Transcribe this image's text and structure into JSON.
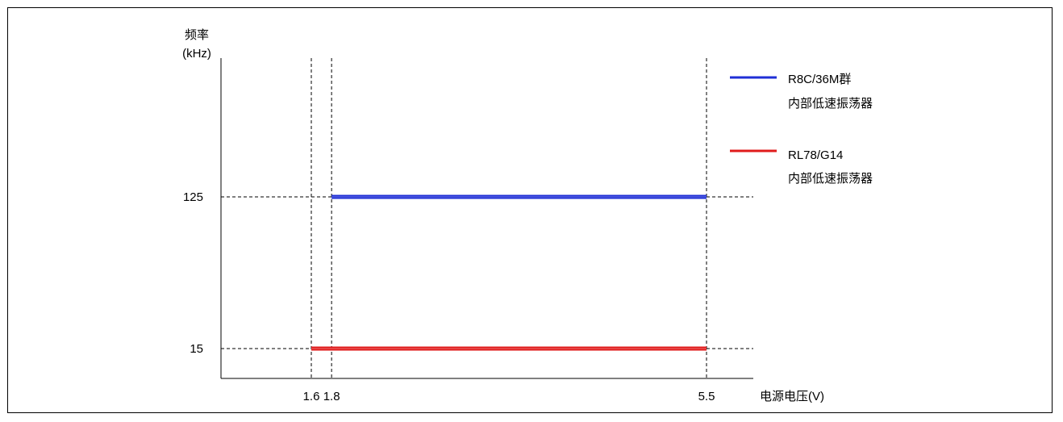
{
  "chart_data": {
    "type": "line",
    "title": "",
    "ylabel_line1": "频率",
    "ylabel_line2": "(kHz)",
    "xlabel": "电源电压(V)",
    "x_ticks": [
      {
        "value": 1.6,
        "label": "1.6"
      },
      {
        "value": 1.8,
        "label": "1.8"
      },
      {
        "value": 5.5,
        "label": "5.5"
      }
    ],
    "y_ticks": [
      {
        "value": 15,
        "label": "15"
      },
      {
        "value": 125,
        "label": "125"
      }
    ],
    "series": [
      {
        "name_line1": "R8C/36M群",
        "name_line2": "内部低速振荡器",
        "color": "#1f2fd6",
        "x": [
          1.8,
          5.5
        ],
        "y": [
          125,
          125
        ]
      },
      {
        "name_line1": "RL78/G14",
        "name_line2": "内部低速振荡器",
        "color": "#e01b1b",
        "x": [
          1.6,
          5.5
        ],
        "y": [
          15,
          15
        ]
      }
    ],
    "legend_position": "top-right",
    "grid": "dashed reference lines at tick values"
  }
}
